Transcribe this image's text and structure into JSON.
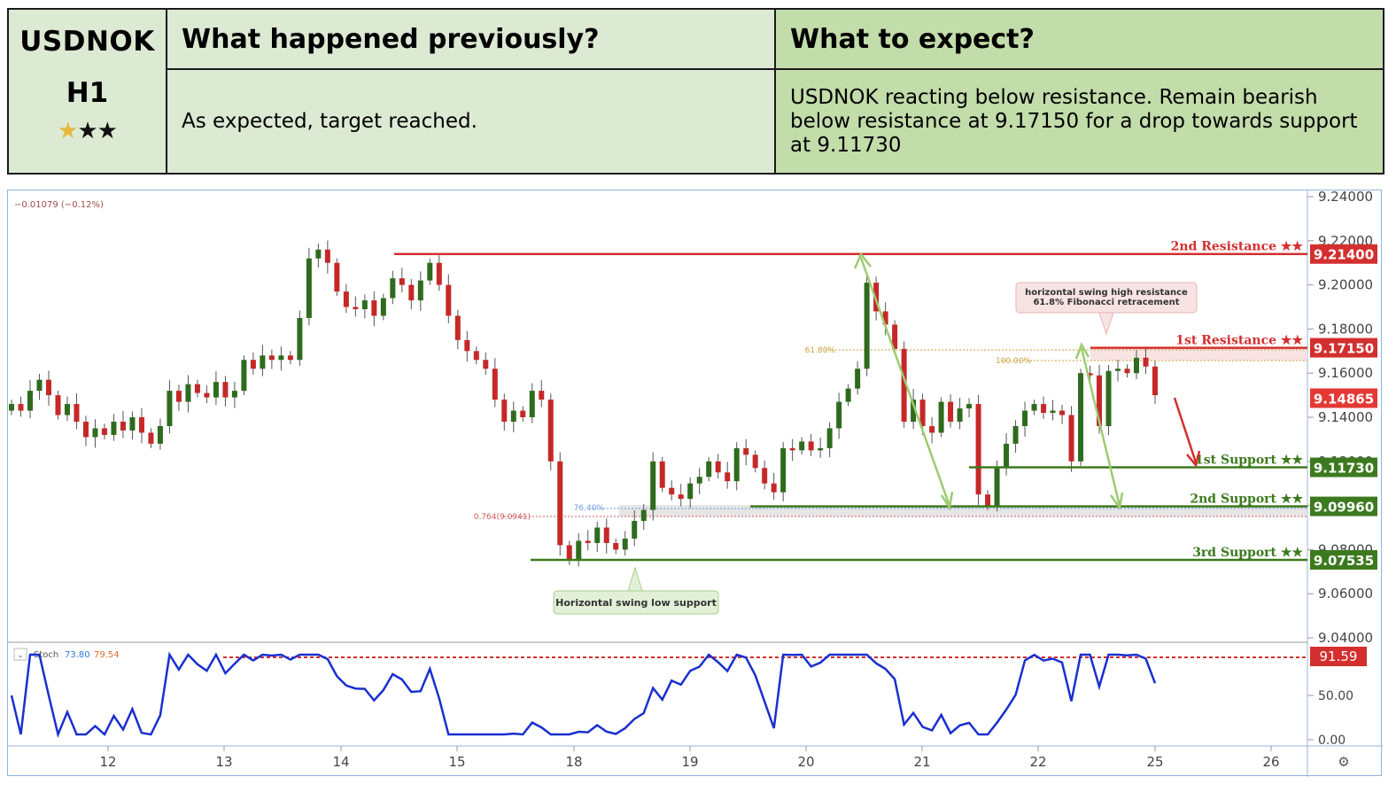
{
  "header": {
    "symbol": "USDNOK",
    "timeframe": "H1",
    "stars": "★★★",
    "col_prev_title": "What happened previously?",
    "col_expect_title": "What to expect?",
    "prev_text": "As expected, target reached.",
    "expect_text": "USDNOK reacting below resistance. Remain bearish below resistance at 9.17150 for a drop towards support at 9.11730"
  },
  "chart_data": {
    "type": "candlestick",
    "change_readout": "−0.01079 (−0.12%)",
    "x_ticks": [
      "12",
      "13",
      "14",
      "15",
      "18",
      "19",
      "20",
      "21",
      "22",
      "25",
      "26"
    ],
    "y_ticks": [
      "9.24000",
      "9.22000",
      "9.20000",
      "9.18000",
      "9.16000",
      "9.14000",
      "9.12000",
      "9.10000",
      "9.08000",
      "9.06000",
      "9.04000"
    ],
    "ylim": [
      9.04,
      9.24
    ],
    "levels": [
      {
        "label": "2nd Resistance ★★",
        "value": "9.21400",
        "color": "#d32f2f"
      },
      {
        "label": "1st Resistance ★★",
        "value": "9.17150",
        "color": "#d32f2f"
      },
      {
        "label": "current",
        "value": "9.14865",
        "color": "#e53935"
      },
      {
        "label": "1st Support ★★",
        "value": "9.11730",
        "color": "#3d7a1f"
      },
      {
        "label": "2nd Support ★★",
        "value": "9.09960",
        "color": "#3d7a1f"
      },
      {
        "label": "3rd Support ★★",
        "value": "9.07535",
        "color": "#3d7a1f"
      }
    ],
    "annotations": {
      "resistance_note_line1": "horizontal swing high resistance",
      "resistance_note_line2": "61.8% Fibonacci retracement",
      "support_note": "Horizontal swing low support",
      "fib_618": "61.80%",
      "fib_100": "100.00%",
      "fib_764": "76.40%",
      "fib_0764": "0.764(9.0941)"
    },
    "stoch": {
      "label": "Stoch",
      "k": "73.80",
      "d": "79.54",
      "level_label": "91.59",
      "y_ticks": [
        "50.00",
        "0.00"
      ],
      "ylim": [
        0,
        100
      ]
    },
    "closes": [
      9.146,
      9.143,
      9.152,
      9.157,
      9.15,
      9.141,
      9.146,
      9.138,
      9.131,
      9.135,
      9.132,
      9.138,
      9.134,
      9.14,
      9.133,
      9.128,
      9.136,
      9.152,
      9.147,
      9.155,
      9.151,
      9.149,
      9.156,
      9.149,
      9.152,
      9.166,
      9.162,
      9.168,
      9.166,
      9.168,
      9.166,
      9.185,
      9.212,
      9.216,
      9.21,
      9.197,
      9.19,
      9.189,
      9.193,
      9.186,
      9.194,
      9.203,
      9.2,
      9.193,
      9.202,
      9.21,
      9.2,
      9.186,
      9.175,
      9.17,
      9.166,
      9.162,
      9.148,
      9.138,
      9.143,
      9.14,
      9.152,
      9.148,
      9.12,
      9.082,
      9.075,
      9.084,
      9.083,
      9.09,
      9.083,
      9.08,
      9.085,
      9.093,
      9.098,
      9.12,
      9.108,
      9.105,
      9.103,
      9.11,
      9.113,
      9.12,
      9.115,
      9.111,
      9.126,
      9.123,
      9.117,
      9.11,
      9.106,
      9.126,
      9.125,
      9.129,
      9.125,
      9.126,
      9.135,
      9.147,
      9.153,
      9.162,
      9.201,
      9.188,
      9.182,
      9.171,
      9.138,
      9.148,
      9.136,
      9.133,
      9.147,
      9.138,
      9.144,
      9.146,
      9.105,
      9.1,
      9.117,
      9.128,
      9.136,
      9.143,
      9.146,
      9.142,
      9.143,
      9.141,
      9.12,
      9.16,
      9.159,
      9.136,
      9.161,
      9.162,
      9.16,
      9.167,
      9.163,
      9.15
    ]
  }
}
